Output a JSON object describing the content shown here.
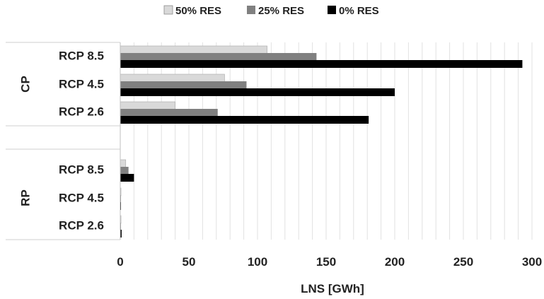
{
  "chart_data": {
    "type": "bar",
    "orientation": "horizontal",
    "title": "",
    "xlabel": "LNS [GWh]",
    "ylabel": "",
    "xlim": [
      0,
      300
    ],
    "x_ticks": [
      "0",
      "50",
      "100",
      "150",
      "200",
      "250",
      "300"
    ],
    "grid": "vertical minor gridlines every 10 GWh",
    "legend_position": "top",
    "groups": [
      {
        "label": "CP",
        "categories": [
          "RCP 8.5",
          "RCP 4.5",
          "RCP 2.6"
        ]
      },
      {
        "label": "RP",
        "categories": [
          "RCP 8.5",
          "RCP 4.5",
          "RCP 2.6"
        ]
      }
    ],
    "series": [
      {
        "name": "50% RES",
        "color": "#d9d9d9",
        "values": [
          107,
          76,
          40,
          4,
          0.5,
          0.3
        ]
      },
      {
        "name": "25% RES",
        "color": "#808080",
        "values": [
          143,
          92,
          71,
          6,
          0.5,
          0.5
        ]
      },
      {
        "name": "0% RES",
        "color": "#000000",
        "values": [
          293,
          200,
          181,
          10,
          0.5,
          1
        ]
      }
    ]
  }
}
